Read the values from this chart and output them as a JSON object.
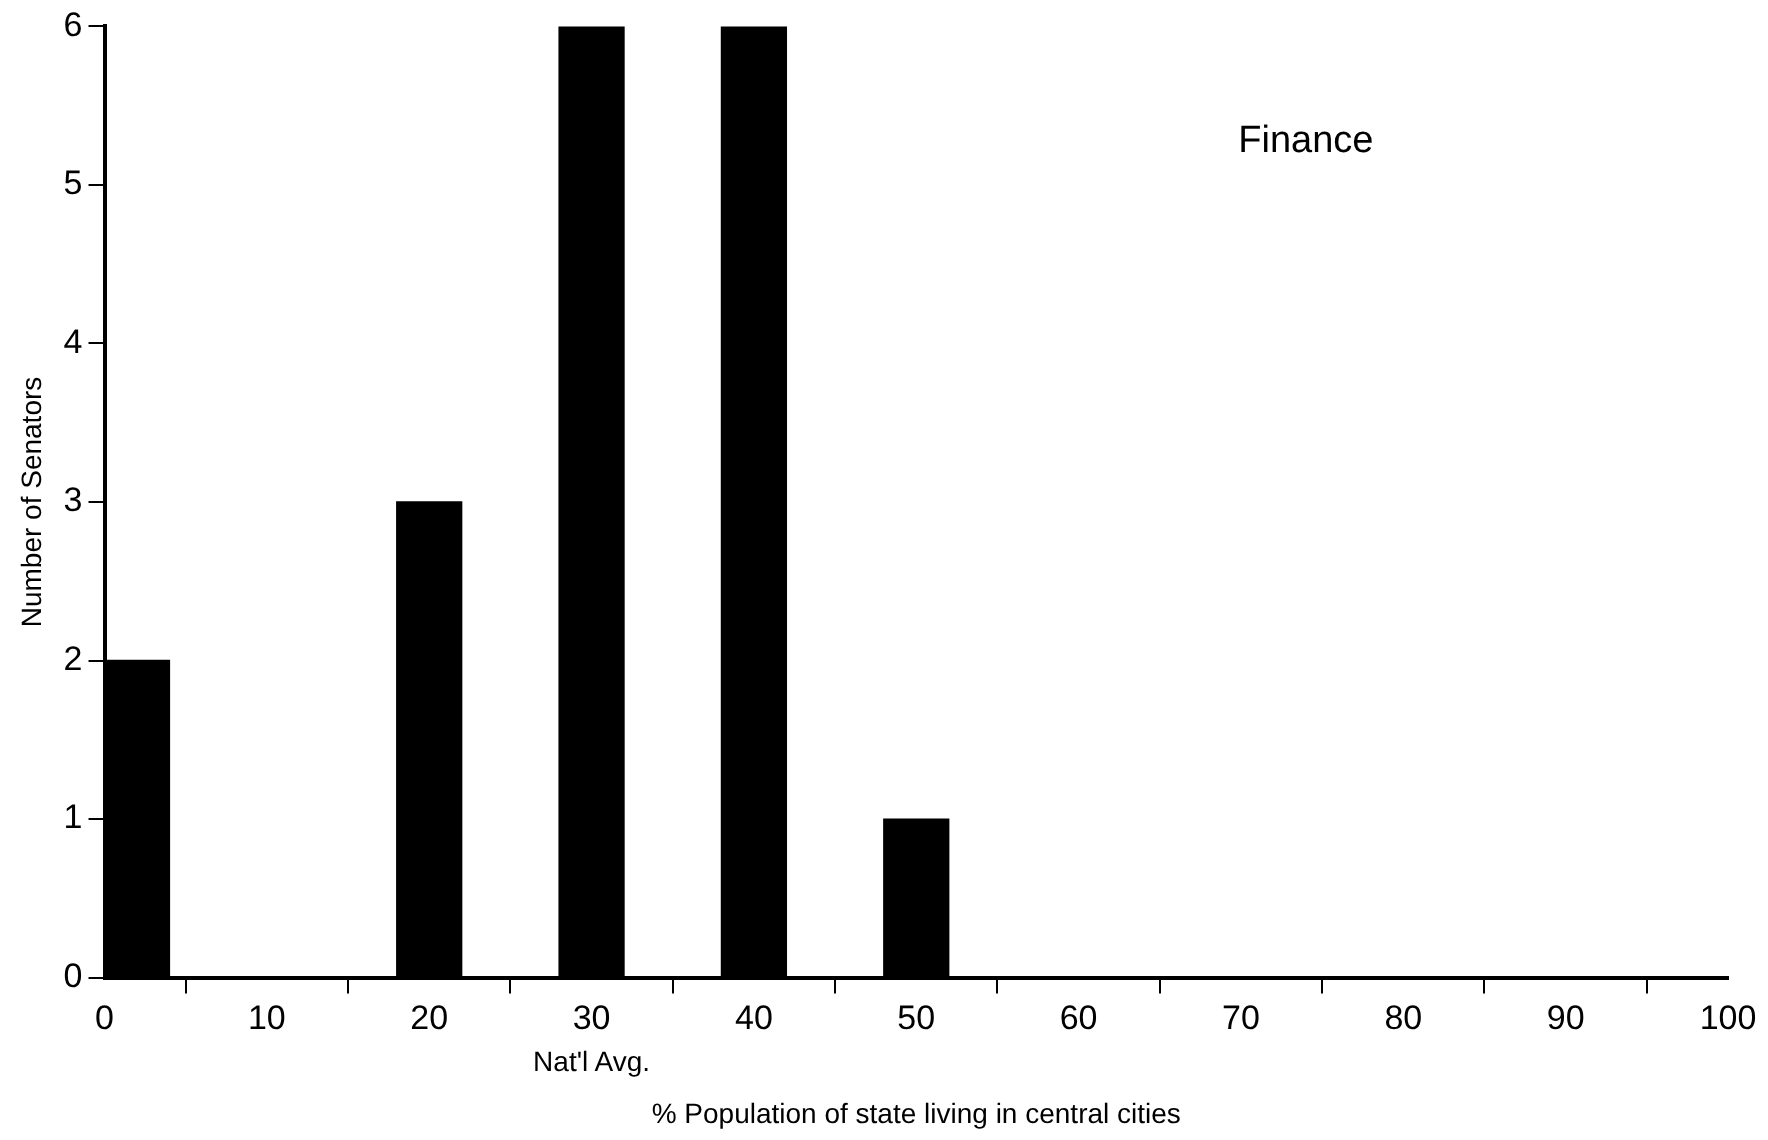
{
  "chart_data": {
    "type": "histogram",
    "title": "Finance",
    "xlabel": "% Population of state living in central cities",
    "ylabel": "Number of Senators",
    "bins": [
      0,
      4,
      18,
      22,
      28,
      32,
      38,
      42,
      48,
      52,
      100
    ],
    "values": [
      2,
      0,
      3,
      0,
      6,
      0,
      6,
      0,
      1,
      0
    ],
    "color": "#000000",
    "xlim": [
      0,
      100
    ],
    "xticks": [
      0,
      10,
      20,
      30,
      40,
      50,
      60,
      70,
      80,
      90,
      100
    ],
    "ylim": [
      0,
      6
    ],
    "yticks": [
      0,
      1,
      2,
      3,
      4,
      5,
      6
    ],
    "grid": false,
    "legend": false,
    "annotations": [
      {
        "text": "Nat'l Avg.",
        "x": 30,
        "y": 0
      }
    ]
  }
}
